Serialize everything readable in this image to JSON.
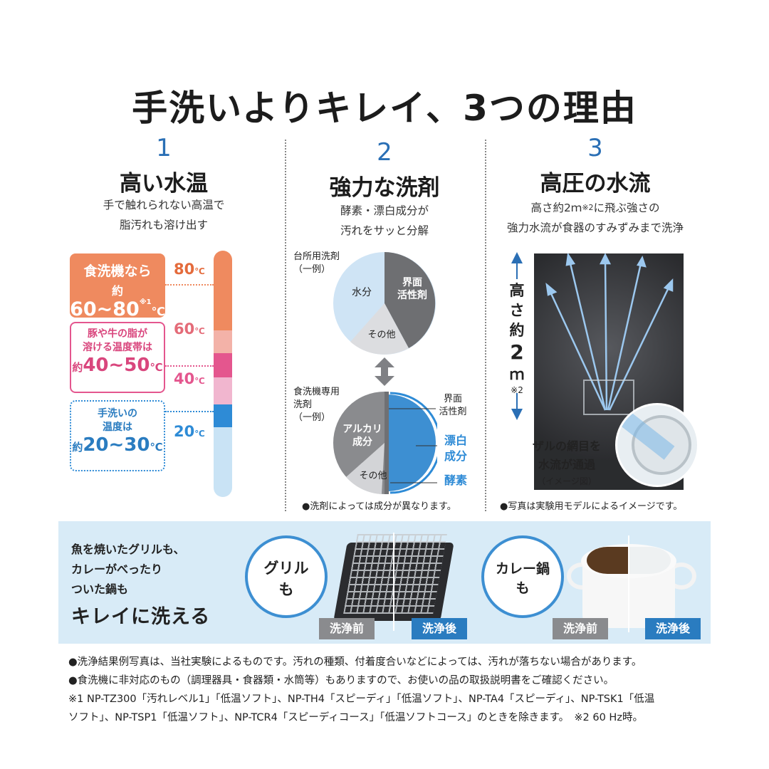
{
  "title": "手洗いよりキレイ、3つの理由",
  "col1": {
    "number": "1",
    "heading": "高い水温",
    "sub1": "手で触れられない高温で",
    "sub2": "脂汚れも溶け出す",
    "box1_line1": "食洗機なら",
    "box1_line2_prefix": "約",
    "box1_line2_value": "60~80",
    "box1_note": "※1",
    "box1_unit": "℃",
    "box2_line1": "豚や牛の脂が",
    "box2_line2": "溶ける温度帯は",
    "box2_line3_prefix": "約",
    "box2_line3_value": "40~50",
    "box2_unit": "℃",
    "box3_line1": "手洗いの",
    "box3_line2": "温度は",
    "box3_line3_prefix": "約",
    "box3_line3_value": "20~30",
    "box3_unit": "℃",
    "t80": "80",
    "t60": "60",
    "t40": "40",
    "t20": "20",
    "deg_unit": "℃",
    "colors": {
      "orange": "#ef8a5f",
      "pink_light": "#f3b2a8",
      "magenta": "#e4568e",
      "pink_pale": "#f1b6cf",
      "blue": "#2e8bd6",
      "blue_pale": "#c9e3f5"
    }
  },
  "col2": {
    "number": "2",
    "heading": "強力な洗剤",
    "sub1": "酵素・漂白成分が",
    "sub2": "汚れをサッと分解",
    "pie1_caption1": "台所用洗剤",
    "pie1_caption2": "（一例）",
    "pie1_water": "水分",
    "pie1_surf1": "界面",
    "pie1_surf2": "活性剤",
    "pie1_other": "その他",
    "pie2_caption1": "食洗機専用",
    "pie2_caption2": "洗剤",
    "pie2_caption3": "（一例）",
    "pie2_alk1": "アルカリ",
    "pie2_alk2": "成分",
    "pie2_other": "その他",
    "pie2_surf1": "界面",
    "pie2_surf2": "活性剤",
    "pie2_bleach1": "漂白",
    "pie2_bleach2": "成分",
    "pie2_enzyme": "酵素",
    "note": "●洗剤によっては成分が異なります。"
  },
  "col3": {
    "number": "3",
    "heading": "高圧の水流",
    "sub1_prefix": "高さ約2ｍ",
    "sub1_note": "※2",
    "sub1_suffix": "に飛ぶ強さの",
    "sub2": "強力水流が食器のすみずみまで洗浄",
    "height_v1": "高",
    "height_v2": "さ",
    "height_v3": "約",
    "height_v4": "2",
    "height_v5": "ｍ",
    "height_note": "※2",
    "mesh1": "ザルの網目を",
    "mesh2": "水流が通過",
    "mesh3": "（イメージ図）",
    "note": "●写真は実験用モデルによるイメージです。"
  },
  "band": {
    "line1": "魚を焼いたグリルも、",
    "line2": "カレーがべったり",
    "line3": "ついた鍋も",
    "line4": "キレイに洗える",
    "grill1": "グリル",
    "grill2": "も",
    "pot1": "カレー鍋",
    "pot2": "も",
    "before": "洗浄前",
    "after": "洗浄後"
  },
  "footnotes": {
    "f1": "●洗浄結果例写真は、当社実験によるものです。汚れの種類、付着度合いなどによっては、汚れが落ちない場合があります。",
    "f2": "●食洗機に非対応のもの（調理器具・食器類・水筒等）もありますので、お使いの品の取扱説明書をご確認ください。",
    "f3": "※1 NP-TZ300「汚れレベル1」「低温ソフト」、NP-TH4「スピーディ」「低温ソフト」、NP-TA4「スピーディ」、NP-TSK1「低温",
    "f4": "ソフト」、NP-TSP1「低温ソフト」、NP-TCR4「スピーディコース」「低温ソフトコース」のときを除きます。　※2 60 Hz時。"
  }
}
